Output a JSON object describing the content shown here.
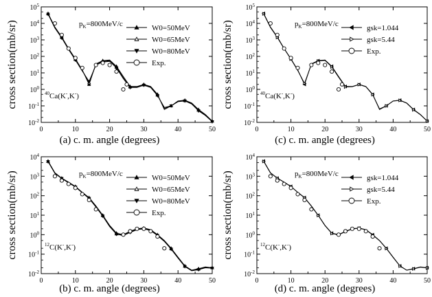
{
  "chart_data": [
    {
      "type": "line",
      "panel": "a",
      "caption": "(a)  c. m. angle (degrees)",
      "xlabel": "c. m. angle (degrees)",
      "ylabel": "cross section(mb/sr)",
      "xlim": [
        0,
        50
      ],
      "ylim": [
        0.01,
        100000
      ],
      "yscale": "log",
      "x_ticks": [
        "0",
        "10",
        "20",
        "30",
        "40",
        "50"
      ],
      "y_ticks": [
        "10-2",
        "10-1",
        "100",
        "101",
        "102",
        "103",
        "104",
        "105"
      ],
      "annotations": [
        "pK=800MeV/c",
        "40Ca(K-,K-)"
      ],
      "legend": [
        "W0=50MeV",
        "W0=65MeV",
        "W0=80MeV",
        "Exp."
      ],
      "legend_position": "top-right",
      "series": [
        {
          "name": "W0=50MeV",
          "marker": "triangle-up-filled",
          "x": [
            2,
            4,
            6,
            8,
            10,
            12,
            14,
            16,
            18,
            20,
            22,
            24,
            26,
            28,
            30,
            32,
            34,
            36,
            38,
            40,
            42,
            44,
            46,
            48,
            50
          ],
          "y": [
            40000,
            6000,
            1500,
            300,
            70,
            15,
            2,
            35,
            55,
            60,
            25,
            6,
            1.5,
            1.5,
            2,
            1.5,
            0.5,
            0.06,
            0.1,
            0.2,
            0.22,
            0.15,
            0.06,
            0.03,
            0.012
          ]
        },
        {
          "name": "W0=65MeV",
          "marker": "triangle-up-open",
          "x": [
            2,
            4,
            6,
            8,
            10,
            12,
            14,
            16,
            18,
            20,
            22,
            24,
            26,
            28,
            30,
            32,
            34,
            36,
            38,
            40,
            42,
            44,
            46,
            48,
            50
          ],
          "y": [
            38000,
            5500,
            1400,
            280,
            65,
            14,
            2.5,
            32,
            50,
            55,
            22,
            5,
            1.4,
            1.4,
            1.9,
            1.4,
            0.45,
            0.07,
            0.1,
            0.19,
            0.21,
            0.14,
            0.055,
            0.028,
            0.012
          ]
        },
        {
          "name": "W0=80MeV",
          "marker": "triangle-down-filled",
          "x": [
            2,
            4,
            6,
            8,
            10,
            12,
            14,
            16,
            18,
            20,
            22,
            24,
            26,
            28,
            30,
            32,
            34,
            36,
            38,
            40,
            42,
            44,
            46,
            48,
            50
          ],
          "y": [
            36000,
            5200,
            1300,
            260,
            60,
            13,
            3,
            30,
            45,
            50,
            20,
            4.5,
            1.3,
            1.3,
            1.8,
            1.3,
            0.42,
            0.08,
            0.1,
            0.18,
            0.2,
            0.13,
            0.05,
            0.026,
            0.011
          ]
        },
        {
          "name": "Exp.",
          "marker": "circle-open",
          "x": [
            4,
            6,
            8,
            10,
            12,
            16,
            18,
            20,
            22,
            24,
            25
          ],
          "y": [
            10000,
            2000,
            300,
            80,
            20,
            30,
            40,
            30,
            12,
            1,
            2
          ]
        }
      ]
    },
    {
      "type": "line",
      "panel": "c",
      "caption": "(c)  c. m. angle (degrees)",
      "xlabel": "c. m. angle (degrees)",
      "ylabel": "cross section(mb/sr)",
      "xlim": [
        0,
        50
      ],
      "ylim": [
        0.01,
        100000
      ],
      "yscale": "log",
      "x_ticks": [
        "0",
        "10",
        "20",
        "30",
        "40",
        "50"
      ],
      "y_ticks": [
        "10-2",
        "10-1",
        "100",
        "101",
        "102",
        "103",
        "104",
        "105"
      ],
      "annotations": [
        "pK=800MeV/c",
        "40Ca(K-,K-)"
      ],
      "legend": [
        "gsk=1.044",
        "gsk=5.44",
        "Exp."
      ],
      "legend_position": "top-right",
      "series": [
        {
          "name": "gsk=1.044",
          "marker": "triangle-left-filled",
          "x": [
            2,
            4,
            6,
            8,
            10,
            12,
            14,
            16,
            18,
            20,
            22,
            24,
            26,
            28,
            30,
            32,
            34,
            36,
            38,
            40,
            42,
            44,
            46,
            48,
            50
          ],
          "y": [
            40000,
            6000,
            1500,
            300,
            70,
            15,
            2,
            35,
            55,
            60,
            25,
            6,
            1.5,
            1.5,
            2,
            1.5,
            0.5,
            0.06,
            0.1,
            0.2,
            0.22,
            0.15,
            0.06,
            0.03,
            0.012
          ]
        },
        {
          "name": "gsk=5.44",
          "marker": "triangle-right-open",
          "x": [
            2,
            4,
            6,
            8,
            10,
            12,
            14,
            16,
            18,
            20,
            22,
            24,
            26,
            28,
            30,
            32,
            34,
            36,
            38,
            40,
            42,
            44,
            46,
            48,
            50
          ],
          "y": [
            38000,
            5600,
            1400,
            290,
            68,
            14,
            2.3,
            33,
            52,
            57,
            23,
            5.5,
            1.4,
            1.45,
            1.95,
            1.45,
            0.48,
            0.065,
            0.1,
            0.195,
            0.215,
            0.145,
            0.058,
            0.029,
            0.012
          ]
        },
        {
          "name": "Exp.",
          "marker": "circle-open",
          "x": [
            4,
            6,
            8,
            10,
            12,
            16,
            18,
            20,
            22,
            24,
            25
          ],
          "y": [
            10000,
            2000,
            300,
            80,
            20,
            30,
            40,
            30,
            12,
            1,
            2
          ]
        }
      ]
    },
    {
      "type": "line",
      "panel": "b",
      "caption": "(b)  c. m. angle (degrees)",
      "xlabel": "c. m. angle (degrees)",
      "ylabel": "cross section(mb/sr)",
      "xlim": [
        0,
        50
      ],
      "ylim": [
        0.01,
        10000
      ],
      "yscale": "log",
      "x_ticks": [
        "0",
        "10",
        "20",
        "30",
        "40",
        "50"
      ],
      "y_ticks": [
        "10-2",
        "10-1",
        "100",
        "101",
        "102",
        "103",
        "104"
      ],
      "annotations": [
        "pK=800MeV/c",
        "12C(K-,K-)"
      ],
      "legend": [
        "W0=50MeV",
        "W0=65MeV",
        "W0=80MeV",
        "Exp."
      ],
      "legend_position": "top-right",
      "series": [
        {
          "name": "W0=50MeV",
          "marker": "triangle-up-filled",
          "x": [
            2,
            4,
            6,
            8,
            10,
            12,
            14,
            16,
            18,
            20,
            22,
            24,
            26,
            28,
            30,
            32,
            34,
            36,
            38,
            40,
            42,
            44,
            46,
            48,
            50
          ],
          "y": [
            6000,
            1500,
            800,
            500,
            300,
            150,
            80,
            30,
            10,
            3,
            1.2,
            1,
            1.5,
            2,
            2.2,
            1.8,
            1,
            0.5,
            0.2,
            0.07,
            0.025,
            0.015,
            0.018,
            0.022,
            0.02
          ]
        },
        {
          "name": "W0=65MeV",
          "marker": "triangle-up-open",
          "x": [
            2,
            4,
            6,
            8,
            10,
            12,
            14,
            16,
            18,
            20,
            22,
            24,
            26,
            28,
            30,
            32,
            34,
            36,
            38,
            40,
            42,
            44,
            46,
            48,
            50
          ],
          "y": [
            5800,
            1450,
            780,
            480,
            290,
            145,
            76,
            28,
            9.5,
            2.8,
            1.1,
            0.95,
            1.4,
            1.9,
            2.1,
            1.7,
            0.95,
            0.48,
            0.19,
            0.066,
            0.024,
            0.015,
            0.017,
            0.021,
            0.02
          ]
        },
        {
          "name": "W0=80MeV",
          "marker": "triangle-down-filled",
          "x": [
            2,
            4,
            6,
            8,
            10,
            12,
            14,
            16,
            18,
            20,
            22,
            24,
            26,
            28,
            30,
            32,
            34,
            36,
            38,
            40,
            42,
            44,
            46,
            48,
            50
          ],
          "y": [
            5600,
            1400,
            760,
            460,
            280,
            140,
            72,
            26,
            9,
            2.6,
            1.05,
            0.9,
            1.3,
            1.8,
            2,
            1.6,
            0.9,
            0.45,
            0.18,
            0.062,
            0.023,
            0.014,
            0.016,
            0.02,
            0.019
          ]
        },
        {
          "name": "Exp.",
          "marker": "circle-open",
          "x": [
            4,
            6,
            8,
            10,
            12,
            14,
            16,
            24,
            26,
            28,
            30,
            32,
            34,
            36
          ],
          "y": [
            1000,
            600,
            400,
            250,
            120,
            60,
            20,
            1,
            1.5,
            2,
            2,
            1.5,
            0.8,
            0.2
          ]
        }
      ]
    },
    {
      "type": "line",
      "panel": "d",
      "caption": "(d)  c. m. angle (degrees)",
      "xlabel": "c. m. angle (degrees)",
      "ylabel": "cross section(mb/sr)",
      "xlim": [
        0,
        50
      ],
      "ylim": [
        0.01,
        10000
      ],
      "yscale": "log",
      "x_ticks": [
        "0",
        "10",
        "20",
        "30",
        "40",
        "50"
      ],
      "y_ticks": [
        "10-2",
        "10-1",
        "100",
        "101",
        "102",
        "103",
        "104"
      ],
      "annotations": [
        "pK=800MeV/c",
        "12C(K-,K-)"
      ],
      "legend": [
        "gsk=1.044",
        "gsk=5.44",
        "Exp."
      ],
      "legend_position": "top-right",
      "series": [
        {
          "name": "gsk=1.044",
          "marker": "triangle-left-filled",
          "x": [
            2,
            4,
            6,
            8,
            10,
            12,
            14,
            16,
            18,
            20,
            22,
            24,
            26,
            28,
            30,
            32,
            34,
            36,
            38,
            40,
            42,
            44,
            46,
            48,
            50
          ],
          "y": [
            6000,
            1500,
            800,
            500,
            300,
            150,
            80,
            30,
            10,
            3,
            1.2,
            1,
            1.5,
            2,
            2.2,
            1.8,
            1,
            0.5,
            0.2,
            0.07,
            0.025,
            0.015,
            0.018,
            0.022,
            0.02
          ]
        },
        {
          "name": "gsk=5.44",
          "marker": "triangle-right-open",
          "x": [
            2,
            4,
            6,
            8,
            10,
            12,
            14,
            16,
            18,
            20,
            22,
            24,
            26,
            28,
            30,
            32,
            34,
            36,
            38,
            40,
            42,
            44,
            46,
            48,
            50
          ],
          "y": [
            5800,
            1460,
            790,
            490,
            295,
            148,
            78,
            29,
            9.7,
            2.9,
            1.15,
            0.97,
            1.45,
            1.95,
            2.15,
            1.75,
            0.97,
            0.49,
            0.195,
            0.068,
            0.0245,
            0.015,
            0.0175,
            0.0215,
            0.0195
          ]
        },
        {
          "name": "Exp.",
          "marker": "circle-open",
          "x": [
            4,
            6,
            8,
            10,
            12,
            14,
            16,
            24,
            26,
            28,
            30,
            32,
            34,
            36
          ],
          "y": [
            1000,
            600,
            400,
            250,
            120,
            60,
            20,
            1,
            1.5,
            2,
            2,
            1.5,
            0.8,
            0.2
          ]
        }
      ]
    }
  ]
}
